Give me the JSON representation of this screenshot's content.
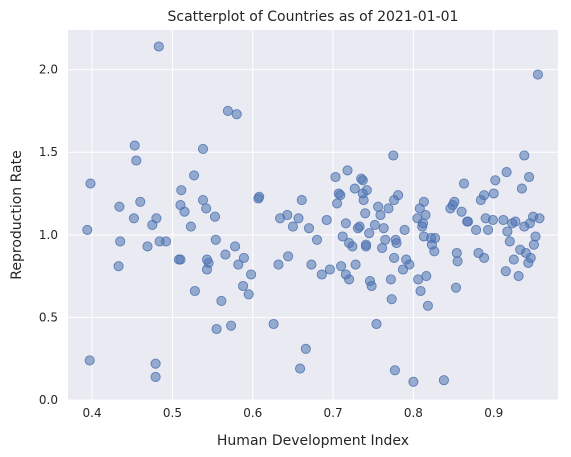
{
  "chart_data": {
    "type": "scatter",
    "title": "Scatterplot of Countries as of 2021-01-01",
    "xlabel": "Human Development Index",
    "ylabel": "Reproduction Rate",
    "xlim": [
      0.37,
      0.98
    ],
    "ylim": [
      0.0,
      2.24
    ],
    "xticks": [
      0.4,
      0.5,
      0.6,
      0.7,
      0.8,
      0.9
    ],
    "xtick_labels": [
      "0.4",
      "0.5",
      "0.6",
      "0.7",
      "0.8",
      "0.9"
    ],
    "yticks": [
      0.0,
      0.5,
      1.0,
      1.5,
      2.0
    ],
    "ytick_labels": [
      "0.0",
      "0.5",
      "1.0",
      "1.5",
      "2.0"
    ],
    "grid": true,
    "colors": {
      "point": "#4c72b0",
      "background": "#eaeaf2",
      "grid": "#ffffff"
    },
    "points": [
      [
        0.394,
        1.03
      ],
      [
        0.398,
        1.31
      ],
      [
        0.397,
        0.24
      ],
      [
        0.434,
        1.17
      ],
      [
        0.435,
        0.96
      ],
      [
        0.433,
        0.81
      ],
      [
        0.452,
        1.1
      ],
      [
        0.453,
        1.54
      ],
      [
        0.455,
        1.45
      ],
      [
        0.46,
        1.2
      ],
      [
        0.469,
        0.93
      ],
      [
        0.475,
        1.06
      ],
      [
        0.48,
        1.1
      ],
      [
        0.483,
        2.14
      ],
      [
        0.484,
        0.96
      ],
      [
        0.492,
        0.96
      ],
      [
        0.479,
        0.22
      ],
      [
        0.479,
        0.14
      ],
      [
        0.508,
        0.85
      ],
      [
        0.51,
        1.18
      ],
      [
        0.511,
        1.27
      ],
      [
        0.515,
        1.14
      ],
      [
        0.51,
        0.85
      ],
      [
        0.523,
        1.05
      ],
      [
        0.527,
        1.36
      ],
      [
        0.528,
        0.66
      ],
      [
        0.538,
        1.52
      ],
      [
        0.538,
        1.21
      ],
      [
        0.542,
        1.16
      ],
      [
        0.543,
        0.85
      ],
      [
        0.543,
        0.79
      ],
      [
        0.545,
        0.83
      ],
      [
        0.553,
        1.11
      ],
      [
        0.554,
        0.97
      ],
      [
        0.555,
        0.43
      ],
      [
        0.561,
        0.6
      ],
      [
        0.566,
        0.88
      ],
      [
        0.569,
        1.75
      ],
      [
        0.573,
        0.45
      ],
      [
        0.58,
        1.73
      ],
      [
        0.578,
        0.93
      ],
      [
        0.582,
        0.82
      ],
      [
        0.589,
        0.86
      ],
      [
        0.588,
        0.69
      ],
      [
        0.595,
        0.64
      ],
      [
        0.598,
        0.76
      ],
      [
        0.607,
        1.22
      ],
      [
        0.608,
        1.23
      ],
      [
        0.626,
        0.46
      ],
      [
        0.632,
        0.82
      ],
      [
        0.634,
        1.1
      ],
      [
        0.643,
        1.12
      ],
      [
        0.644,
        0.87
      ],
      [
        0.65,
        1.05
      ],
      [
        0.657,
        1.1
      ],
      [
        0.661,
        1.21
      ],
      [
        0.659,
        0.19
      ],
      [
        0.666,
        0.31
      ],
      [
        0.67,
        1.04
      ],
      [
        0.673,
        0.82
      ],
      [
        0.68,
        0.97
      ],
      [
        0.686,
        0.76
      ],
      [
        0.692,
        1.09
      ],
      [
        0.696,
        0.79
      ],
      [
        0.703,
        1.35
      ],
      [
        0.705,
        1.19
      ],
      [
        0.707,
        1.25
      ],
      [
        0.709,
        1.24
      ],
      [
        0.71,
        0.81
      ],
      [
        0.712,
        0.99
      ],
      [
        0.716,
        1.07
      ],
      [
        0.716,
        0.76
      ],
      [
        0.718,
        1.39
      ],
      [
        0.72,
        0.95
      ],
      [
        0.72,
        0.73
      ],
      [
        0.724,
        0.93
      ],
      [
        0.727,
        1.28
      ],
      [
        0.728,
        0.82
      ],
      [
        0.731,
        1.04
      ],
      [
        0.733,
        1.05
      ],
      [
        0.735,
        1.34
      ],
      [
        0.737,
        1.33
      ],
      [
        0.737,
        1.25
      ],
      [
        0.738,
        1.21
      ],
      [
        0.74,
        1.13
      ],
      [
        0.741,
        0.94
      ],
      [
        0.741,
        0.93
      ],
      [
        0.742,
        1.27
      ],
      [
        0.745,
        1.01
      ],
      [
        0.746,
        0.72
      ],
      [
        0.748,
        0.69
      ],
      [
        0.752,
        1.06
      ],
      [
        0.754,
        0.46
      ],
      [
        0.756,
        1.17
      ],
      [
        0.759,
        1.12
      ],
      [
        0.761,
        0.92
      ],
      [
        0.763,
        1.04
      ],
      [
        0.765,
        0.97
      ],
      [
        0.769,
        1.16
      ],
      [
        0.772,
        0.73
      ],
      [
        0.773,
        0.61
      ],
      [
        0.775,
        1.48
      ],
      [
        0.776,
        1.21
      ],
      [
        0.776,
        0.86
      ],
      [
        0.777,
        0.18
      ],
      [
        0.778,
        0.97
      ],
      [
        0.779,
        0.95
      ],
      [
        0.781,
        1.24
      ],
      [
        0.787,
        0.79
      ],
      [
        0.789,
        1.03
      ],
      [
        0.791,
        0.85
      ],
      [
        0.795,
        0.82
      ],
      [
        0.8,
        0.11
      ],
      [
        0.805,
        1.1
      ],
      [
        0.806,
        0.73
      ],
      [
        0.808,
        1.16
      ],
      [
        0.809,
        0.66
      ],
      [
        0.811,
        1.05
      ],
      [
        0.812,
        1.07
      ],
      [
        0.813,
        1.2
      ],
      [
        0.813,
        0.99
      ],
      [
        0.815,
        1.12
      ],
      [
        0.816,
        0.75
      ],
      [
        0.818,
        0.57
      ],
      [
        0.822,
        0.98
      ],
      [
        0.823,
        0.94
      ],
      [
        0.826,
        0.9
      ],
      [
        0.827,
        0.98
      ],
      [
        0.838,
        0.12
      ],
      [
        0.846,
        1.16
      ],
      [
        0.849,
        1.18
      ],
      [
        0.851,
        1.2
      ],
      [
        0.853,
        0.68
      ],
      [
        0.854,
        0.89
      ],
      [
        0.855,
        0.84
      ],
      [
        0.86,
        1.14
      ],
      [
        0.863,
        1.31
      ],
      [
        0.867,
        1.08
      ],
      [
        0.868,
        1.08
      ],
      [
        0.878,
        1.03
      ],
      [
        0.881,
        0.89
      ],
      [
        0.884,
        1.21
      ],
      [
        0.888,
        0.86
      ],
      [
        0.888,
        1.24
      ],
      [
        0.89,
        1.1
      ],
      [
        0.893,
        1.03
      ],
      [
        0.899,
        1.09
      ],
      [
        0.9,
        1.25
      ],
      [
        0.902,
        1.33
      ],
      [
        0.912,
        1.09
      ],
      [
        0.915,
        0.78
      ],
      [
        0.916,
        1.38
      ],
      [
        0.917,
        1.02
      ],
      [
        0.92,
        0.96
      ],
      [
        0.923,
        1.07
      ],
      [
        0.925,
        0.85
      ],
      [
        0.927,
        1.08
      ],
      [
        0.931,
        0.75
      ],
      [
        0.933,
        0.91
      ],
      [
        0.935,
        1.28
      ],
      [
        0.938,
        1.48
      ],
      [
        0.938,
        1.05
      ],
      [
        0.94,
        0.89
      ],
      [
        0.943,
        0.83
      ],
      [
        0.944,
        1.35
      ],
      [
        0.945,
        1.07
      ],
      [
        0.946,
        0.86
      ],
      [
        0.949,
        1.11
      ],
      [
        0.95,
        0.94
      ],
      [
        0.952,
        0.99
      ],
      [
        0.955,
        1.97
      ],
      [
        0.957,
        1.1
      ]
    ]
  }
}
